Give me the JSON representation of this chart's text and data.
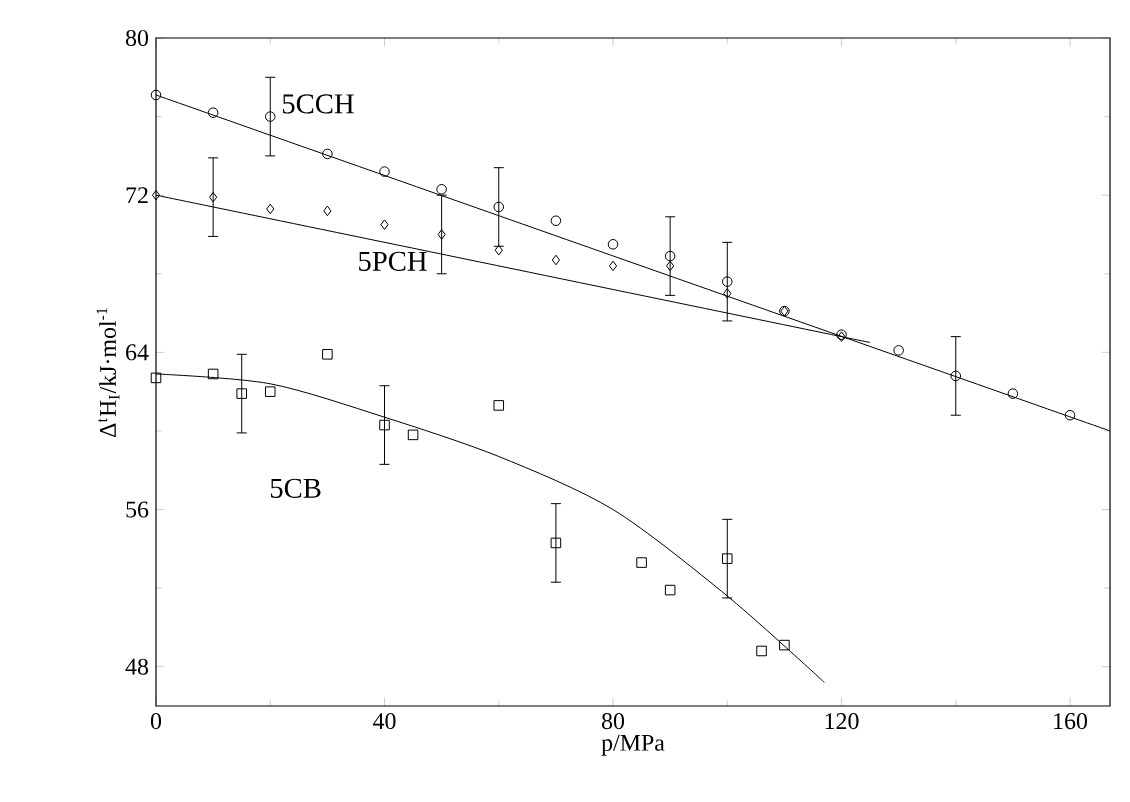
{
  "chart_data": {
    "type": "scatter",
    "xlabel": "p/MPa",
    "ylabel": "Δ$^{t}$H$_{I}$/kJ·mol$^{-1}$",
    "xlim": [
      0,
      167
    ],
    "ylim": [
      46,
      80
    ],
    "xticks": [
      0,
      40,
      80,
      120,
      160
    ],
    "yticks": [
      48,
      56,
      64,
      72,
      80
    ],
    "grid": false,
    "legend": false,
    "series": [
      {
        "name": "5CCH",
        "marker": "circle",
        "color": "#000000",
        "x": [
          0,
          10,
          20,
          30,
          40,
          50,
          60,
          70,
          80,
          90,
          100,
          110,
          120,
          130,
          140,
          150,
          160
        ],
        "values": [
          77.1,
          76.2,
          76.0,
          74.1,
          73.2,
          72.3,
          71.4,
          70.7,
          69.5,
          68.9,
          67.6,
          66.1,
          64.9,
          64.1,
          62.8,
          61.9,
          60.8
        ],
        "errors": [
          null,
          null,
          2,
          null,
          null,
          null,
          2,
          null,
          null,
          2,
          2,
          null,
          null,
          null,
          2,
          null,
          null
        ]
      },
      {
        "name": "5PCH",
        "marker": "diamond",
        "color": "#000000",
        "x": [
          0,
          10,
          20,
          30,
          40,
          50,
          60,
          70,
          80,
          90,
          100,
          110,
          120
        ],
        "values": [
          72.0,
          71.9,
          71.3,
          71.2,
          70.5,
          70.0,
          69.2,
          68.7,
          68.4,
          68.4,
          67.0,
          66.1,
          64.8
        ],
        "errors": [
          null,
          2,
          null,
          null,
          null,
          2,
          null,
          null,
          null,
          null,
          null,
          null,
          null
        ]
      },
      {
        "name": "5CB",
        "marker": "square",
        "color": "#000000",
        "x": [
          0,
          10,
          15,
          20,
          30,
          40,
          45,
          60,
          70,
          85,
          90,
          100,
          106,
          110
        ],
        "values": [
          62.7,
          62.9,
          61.9,
          62.0,
          63.9,
          60.3,
          59.8,
          61.3,
          54.3,
          53.3,
          51.9,
          53.5,
          48.8,
          49.1
        ],
        "errors": [
          null,
          null,
          2,
          null,
          null,
          2,
          null,
          null,
          2,
          null,
          null,
          2,
          null,
          null
        ]
      },
      {
        "type": "line",
        "color": "#000000",
        "x": [
          0,
          167
        ],
        "values": [
          77.1,
          60.0
        ]
      },
      {
        "type": "line",
        "color": "#000000",
        "x": [
          0,
          125
        ],
        "values": [
          72.0,
          64.5
        ]
      },
      {
        "type": "line",
        "color": "#000000",
        "x": [
          0,
          20,
          40,
          60,
          80,
          100,
          117
        ],
        "values": [
          62.9,
          62.4,
          60.7,
          58.7,
          56.0,
          51.6,
          47.2
        ]
      }
    ]
  }
}
